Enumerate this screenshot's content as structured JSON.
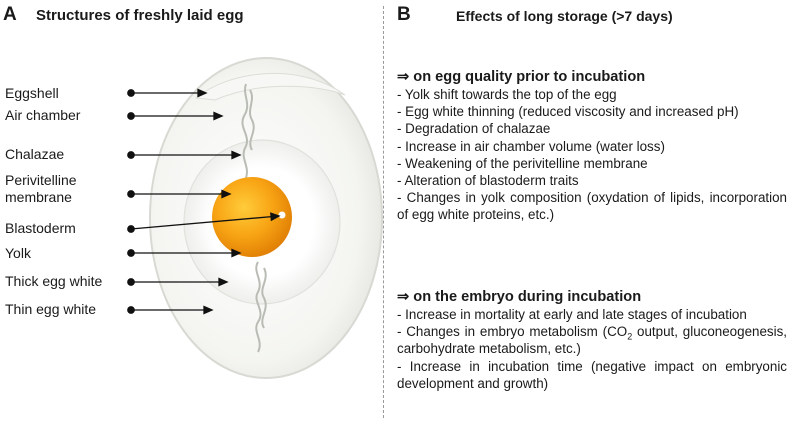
{
  "panel_a": {
    "letter": "A",
    "title": "Structures of freshly laid egg",
    "labels": [
      {
        "line1": "Eggshell",
        "line2": ""
      },
      {
        "line1": "Air chamber",
        "line2": ""
      },
      {
        "line1": "Chalazae",
        "line2": ""
      },
      {
        "line1": "Perivitelline",
        "line2": "membrane"
      },
      {
        "line1": "Blastoderm",
        "line2": ""
      },
      {
        "line1": "Yolk",
        "line2": ""
      },
      {
        "line1": "Thick egg white",
        "line2": ""
      },
      {
        "line1": "Thin egg white",
        "line2": ""
      }
    ]
  },
  "panel_b": {
    "letter": "B",
    "title": "Effects of long storage (>7 days)",
    "sections": [
      {
        "arrow": "⇒",
        "heading": "on egg quality prior to incubation",
        "items": [
          "- Yolk shift towards the top of  the egg",
          "- Egg white thinning (reduced viscosity and increased pH)",
          "- Degradation of chalazae",
          "- Increase in air chamber volume (water loss)",
          "- Weakening of the perivitelline membrane",
          "- Alteration of blastoderm traits",
          "- Changes in yolk composition (oxydation of lipids, incorporation of egg white proteins, etc.)"
        ]
      },
      {
        "arrow": "⇒",
        "heading": "on the embryo during incubation",
        "items": [
          "- Increase in mortality at early and late stages of incubation",
          "- Increase in incubation time (negative impact on embryonic development and growth)"
        ],
        "metabolism_item": {
          "before": "- Changes in embryo metabolism (CO",
          "sub": "2",
          "after": " output, gluconeogenesis, carbohydrate metabolism, etc.)"
        }
      }
    ]
  }
}
